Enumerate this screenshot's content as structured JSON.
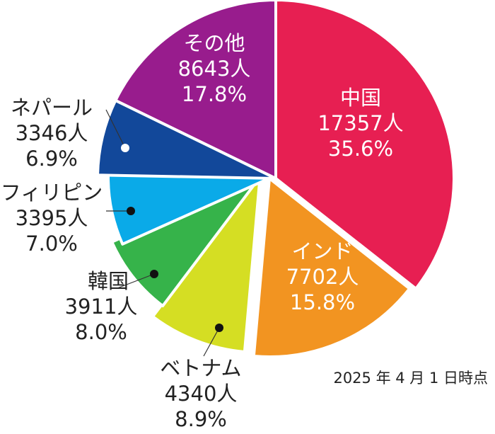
{
  "chart_data": {
    "type": "pie",
    "slices": [
      {
        "label": "中国",
        "count": "17357人",
        "percent": "35.6%",
        "value": 35.6,
        "color": "#e71f52",
        "text_color": "#ffffff",
        "name": "china"
      },
      {
        "label": "インド",
        "count": "7702人",
        "percent": "15.8%",
        "value": 15.8,
        "color": "#f29421",
        "text_color": "#ffffff",
        "name": "india"
      },
      {
        "label": "ベトナム",
        "count": "4340人",
        "percent": "8.9%",
        "value": 8.9,
        "color": "#d5de23",
        "text_color": "#222222",
        "name": "vietnam"
      },
      {
        "label": "韓国",
        "count": "3911人",
        "percent": "8.0%",
        "value": 8.0,
        "color": "#36b34a",
        "text_color": "#222222",
        "name": "korea"
      },
      {
        "label": "フィリピン",
        "count": "3395人",
        "percent": "7.0%",
        "value": 7.0,
        "color": "#0aaae8",
        "text_color": "#222222",
        "name": "philippines"
      },
      {
        "label": "ネパール",
        "count": "3346人",
        "percent": "6.9%",
        "value": 6.9,
        "color": "#12489a",
        "text_color": "#222222",
        "name": "nepal"
      },
      {
        "label": "その他",
        "count": "8643人",
        "percent": "17.8%",
        "value": 17.8,
        "color": "#981c8d",
        "text_color": "#ffffff",
        "name": "other"
      }
    ],
    "note": "2025 年 4 月 1 日時点"
  }
}
